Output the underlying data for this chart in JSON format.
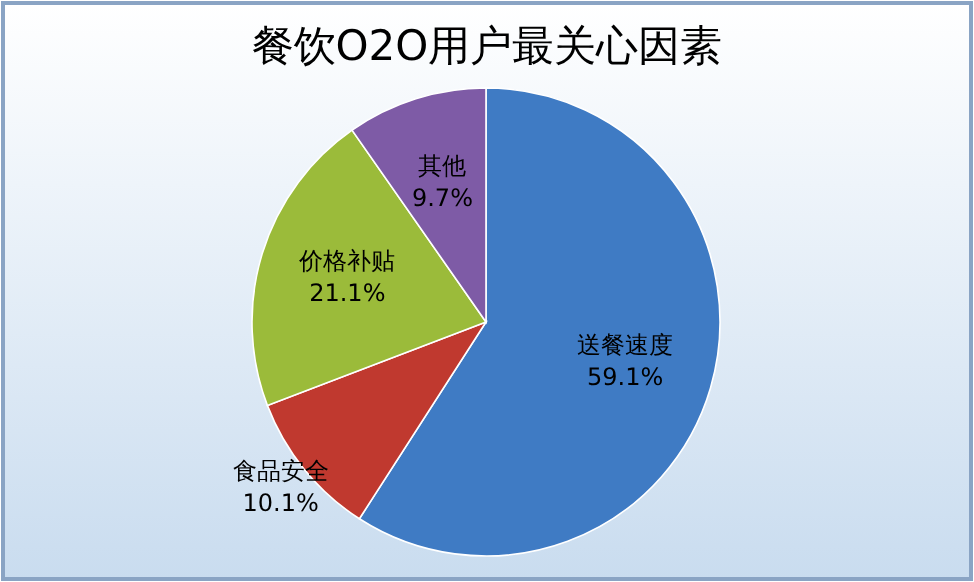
{
  "chart_data": {
    "type": "pie",
    "title": "餐饮O2O用户最关心因素",
    "categories": [
      "送餐速度",
      "食品安全",
      "价格补贴",
      "其他"
    ],
    "values": [
      59.1,
      10.1,
      21.1,
      9.7
    ],
    "colors": [
      "#3f7bc4",
      "#c0392f",
      "#9bbb3a",
      "#7e5ba6"
    ],
    "value_labels": [
      "59.1%",
      "10.1%",
      "21.1%",
      "9.7%"
    ],
    "legend": false
  }
}
